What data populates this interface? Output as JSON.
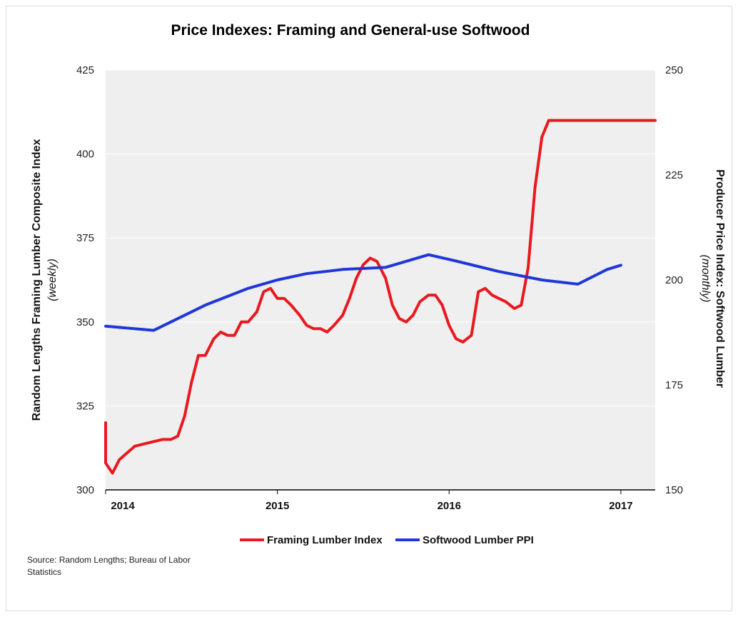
{
  "chart_data": {
    "type": "line",
    "title": "Price Indexes:  Framing and General-use Softwood",
    "left_axis": {
      "label": "Random Lengths Framing Lumber Composite Index",
      "sublabel": "(weekly)",
      "ylim": [
        300,
        425
      ],
      "ticks": [
        "300",
        "325",
        "350",
        "375",
        "400",
        "425"
      ]
    },
    "right_axis": {
      "label": "Producer Price Index: Softwood Lumber",
      "sublabel": "(monthly)",
      "ylim": [
        150,
        250
      ],
      "ticks": [
        "150",
        "175",
        "200",
        "225",
        "250"
      ]
    },
    "x_axis": {
      "xlim": [
        2014.0,
        2017.2
      ],
      "tick_labels": [
        "2014",
        "2015",
        "2016",
        "2017"
      ],
      "tick_positions": [
        2014.0,
        2015.0,
        2016.0,
        2017.0
      ]
    },
    "grid": true,
    "legend_position": "bottom-center",
    "series": [
      {
        "name": "Framing Lumber Index",
        "axis": "left",
        "color": "#e8191f",
        "x": [
          2013.92,
          2013.96,
          2014.0,
          2014.04,
          2014.08,
          2014.17,
          2014.25,
          2014.33,
          2014.38,
          2014.42,
          2014.46,
          2014.5,
          2014.54,
          2014.58,
          2014.63,
          2014.67,
          2014.71,
          2014.75,
          2014.79,
          2014.83,
          2014.88,
          2014.92,
          2014.96,
          2015.0,
          2015.04,
          2015.08,
          2015.13,
          2015.17,
          2015.21,
          2015.25,
          2015.29,
          2015.33,
          2015.38,
          2015.42,
          2015.46,
          2015.5,
          2015.54,
          2015.58,
          2015.63,
          2015.67,
          2015.71,
          2015.75,
          2015.79,
          2015.83,
          2015.88,
          2015.92,
          2015.96,
          2016.0,
          2016.04,
          2016.08,
          2016.13,
          2016.17,
          2016.21,
          2016.25,
          2016.29,
          2016.33,
          2016.38,
          2016.42,
          2016.46,
          2016.5,
          2016.54,
          2016.58,
          2016.63,
          2016.67,
          2016.71,
          2016.75,
          2016.79,
          2016.83,
          2016.88,
          2016.92,
          2016.96,
          2017.0,
          2017.04,
          2017.08,
          2017.13,
          2017.17,
          2017.21
        ],
        "values": [
          320,
          315,
          308,
          305,
          309,
          313,
          314,
          315,
          315,
          316,
          322,
          332,
          340,
          340,
          345,
          347,
          346,
          346,
          350,
          350,
          353,
          359,
          360,
          357,
          357,
          355,
          352,
          349,
          348,
          348,
          347,
          349,
          352,
          357,
          363,
          367,
          369,
          368,
          363,
          355,
          351,
          350,
          352,
          356,
          358,
          358,
          355,
          349,
          345,
          344,
          346,
          359,
          360,
          358,
          357,
          356,
          354,
          355,
          366,
          390,
          405,
          410,
          410,
          410,
          410,
          410,
          410,
          410,
          410,
          410,
          410,
          410,
          410,
          410,
          410,
          410,
          410
        ]
      },
      {
        "name": "Softwood Lumber PPI",
        "axis": "right",
        "color": "#2037d8",
        "x": [
          2014.0,
          2014.28,
          2014.58,
          2014.83,
          2015.0,
          2015.17,
          2015.38,
          2015.63,
          2015.88,
          2016.04,
          2016.29,
          2016.54,
          2016.75,
          2016.92,
          2017.0
        ],
        "values": [
          189,
          188,
          194,
          198,
          200,
          201.5,
          202.5,
          203,
          206,
          204.5,
          202,
          200,
          199,
          202.5,
          203.5
        ]
      }
    ]
  },
  "source": "Source: Random Lengths; Bureau of Labor Statistics"
}
